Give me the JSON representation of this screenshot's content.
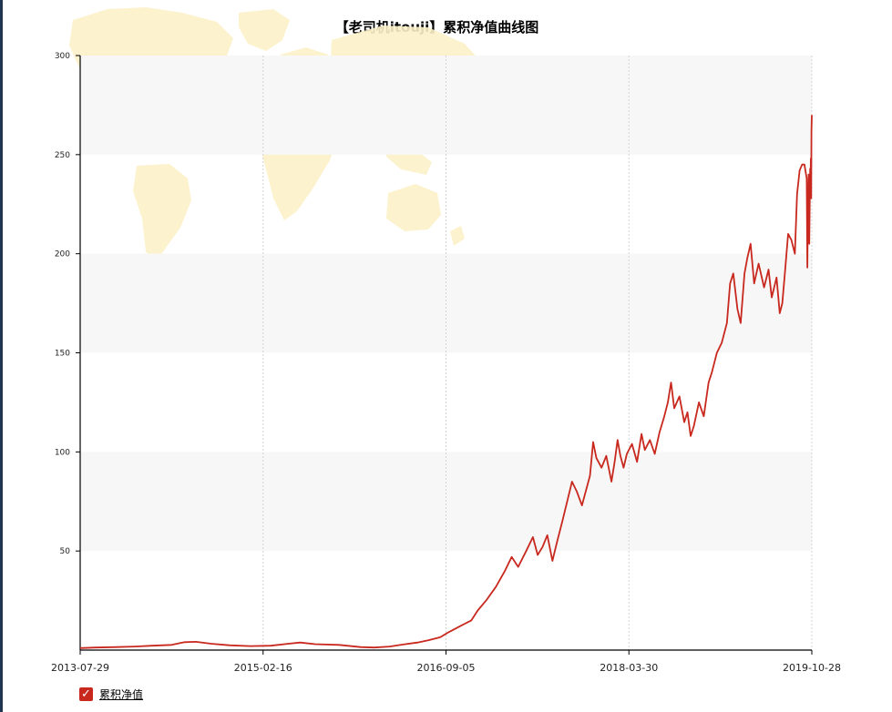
{
  "chart_data": {
    "type": "line",
    "title": "【老司机itouji】累积净值曲线图",
    "xlabel": "",
    "ylabel": "",
    "x_tick_labels": [
      "2013-07-29",
      "2015-02-16",
      "2016-09-05",
      "2018-03-30",
      "2019-10-28"
    ],
    "y_ticks": [
      50,
      100,
      150,
      200,
      250,
      300
    ],
    "ylim": [
      0,
      300
    ],
    "xlim": [
      "2013-07-29",
      "2019-10-28"
    ],
    "grid": {
      "x": true,
      "y_bands": true
    },
    "legend": {
      "placement": "bottom-left",
      "checked": true
    },
    "series": [
      {
        "name": "累积净值",
        "color": "#c8281e",
        "points": [
          [
            "2013-07-29",
            1.0
          ],
          [
            "2013-09-15",
            1.3
          ],
          [
            "2013-11-20",
            1.5
          ],
          [
            "2014-01-15",
            1.8
          ],
          [
            "2014-03-10",
            2.2
          ],
          [
            "2014-05-10",
            2.6
          ],
          [
            "2014-06-20",
            4.0
          ],
          [
            "2014-07-25",
            4.2
          ],
          [
            "2014-09-10",
            3.2
          ],
          [
            "2014-11-10",
            2.4
          ],
          [
            "2015-01-10",
            2.0
          ],
          [
            "2015-03-15",
            2.2
          ],
          [
            "2015-05-10",
            3.2
          ],
          [
            "2015-06-15",
            3.8
          ],
          [
            "2015-08-01",
            3.0
          ],
          [
            "2015-10-15",
            2.6
          ],
          [
            "2015-12-20",
            1.5
          ],
          [
            "2016-02-01",
            1.3
          ],
          [
            "2016-03-20",
            1.8
          ],
          [
            "2016-05-01",
            2.8
          ],
          [
            "2016-06-15",
            3.8
          ],
          [
            "2016-07-20",
            5.0
          ],
          [
            "2016-08-25",
            6.5
          ],
          [
            "2016-09-20",
            9.0
          ],
          [
            "2016-10-25",
            12.0
          ],
          [
            "2016-11-30",
            15.0
          ],
          [
            "2016-12-20",
            20.0
          ],
          [
            "2017-01-15",
            25.0
          ],
          [
            "2017-02-15",
            32.0
          ],
          [
            "2017-03-15",
            40.0
          ],
          [
            "2017-04-05",
            47.0
          ],
          [
            "2017-04-25",
            42.0
          ],
          [
            "2017-05-20",
            50.0
          ],
          [
            "2017-06-10",
            57.0
          ],
          [
            "2017-06-25",
            48.0
          ],
          [
            "2017-07-10",
            52.0
          ],
          [
            "2017-07-25",
            58.0
          ],
          [
            "2017-08-10",
            45.0
          ],
          [
            "2017-08-25",
            55.0
          ],
          [
            "2017-09-10",
            65.0
          ],
          [
            "2017-09-25",
            75.0
          ],
          [
            "2017-10-10",
            85.0
          ],
          [
            "2017-10-25",
            80.0
          ],
          [
            "2017-11-10",
            73.0
          ],
          [
            "2017-11-25",
            82.0
          ],
          [
            "2017-12-05",
            88.0
          ],
          [
            "2017-12-15",
            105.0
          ],
          [
            "2017-12-25",
            97.0
          ],
          [
            "2018-01-10",
            92.0
          ],
          [
            "2018-01-25",
            98.0
          ],
          [
            "2018-02-10",
            85.0
          ],
          [
            "2018-02-20",
            95.0
          ],
          [
            "2018-03-01",
            106.0
          ],
          [
            "2018-03-10",
            98.0
          ],
          [
            "2018-03-20",
            92.0
          ],
          [
            "2018-03-30",
            99.0
          ],
          [
            "2018-04-15",
            104.0
          ],
          [
            "2018-05-01",
            95.0
          ],
          [
            "2018-05-15",
            109.0
          ],
          [
            "2018-05-25",
            101.0
          ],
          [
            "2018-06-10",
            106.0
          ],
          [
            "2018-06-25",
            99.0
          ],
          [
            "2018-07-10",
            110.0
          ],
          [
            "2018-07-25",
            118.0
          ],
          [
            "2018-08-05",
            125.0
          ],
          [
            "2018-08-15",
            135.0
          ],
          [
            "2018-08-25",
            122.0
          ],
          [
            "2018-09-10",
            128.0
          ],
          [
            "2018-09-25",
            115.0
          ],
          [
            "2018-10-05",
            120.0
          ],
          [
            "2018-10-15",
            108.0
          ],
          [
            "2018-10-25",
            113.0
          ],
          [
            "2018-11-10",
            125.0
          ],
          [
            "2018-11-25",
            118.0
          ],
          [
            "2018-12-10",
            135.0
          ],
          [
            "2018-12-20",
            140.0
          ],
          [
            "2019-01-05",
            150.0
          ],
          [
            "2019-01-20",
            155.0
          ],
          [
            "2019-02-05",
            165.0
          ],
          [
            "2019-02-15",
            185.0
          ],
          [
            "2019-02-25",
            190.0
          ],
          [
            "2019-03-10",
            172.0
          ],
          [
            "2019-03-20",
            165.0
          ],
          [
            "2019-04-01",
            190.0
          ],
          [
            "2019-04-10",
            198.0
          ],
          [
            "2019-04-20",
            205.0
          ],
          [
            "2019-05-01",
            185.0
          ],
          [
            "2019-05-15",
            195.0
          ],
          [
            "2019-06-01",
            183.0
          ],
          [
            "2019-06-15",
            192.0
          ],
          [
            "2019-06-25",
            178.0
          ],
          [
            "2019-07-10",
            188.0
          ],
          [
            "2019-07-20",
            170.0
          ],
          [
            "2019-07-28",
            175.0
          ],
          [
            "2019-08-05",
            190.0
          ],
          [
            "2019-08-15",
            210.0
          ],
          [
            "2019-08-25",
            207.0
          ],
          [
            "2019-09-05",
            200.0
          ],
          [
            "2019-09-12",
            230.0
          ],
          [
            "2019-09-20",
            242.0
          ],
          [
            "2019-09-28",
            245.0
          ],
          [
            "2019-10-05",
            245.0
          ],
          [
            "2019-10-12",
            238.0
          ],
          [
            "2019-10-14",
            193.0
          ],
          [
            "2019-10-16",
            225.0
          ],
          [
            "2019-10-18",
            240.0
          ],
          [
            "2019-10-20",
            205.0
          ],
          [
            "2019-10-22",
            232.0
          ],
          [
            "2019-10-23",
            243.0
          ],
          [
            "2019-10-24",
            236.0
          ],
          [
            "2019-10-25",
            248.0
          ],
          [
            "2019-10-26",
            228.0
          ],
          [
            "2019-10-27",
            262.0
          ],
          [
            "2019-10-28",
            270.0
          ]
        ]
      }
    ]
  }
}
